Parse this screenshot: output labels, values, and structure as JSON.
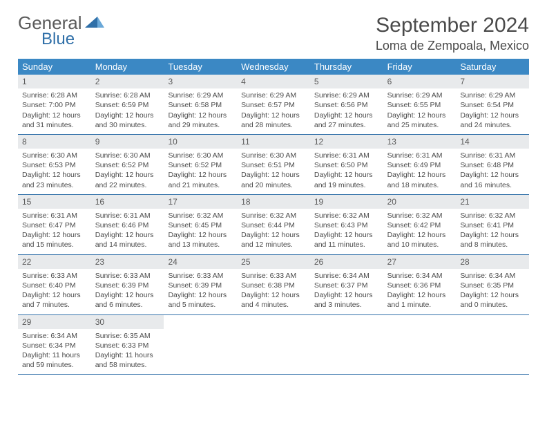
{
  "logo": {
    "word1": "General",
    "word2": "Blue"
  },
  "title": "September 2024",
  "location": "Loma de Zempoala, Mexico",
  "colors": {
    "header_bar": "#3b88c4",
    "daynum_bg": "#e8eaec",
    "rule": "#2f6fa8",
    "text": "#4a4a4a",
    "logo_gray": "#5a5a5a",
    "logo_blue": "#2f6fa8"
  },
  "weekdays": [
    "Sunday",
    "Monday",
    "Tuesday",
    "Wednesday",
    "Thursday",
    "Friday",
    "Saturday"
  ],
  "weeks": [
    [
      {
        "n": "1",
        "sr": "6:28 AM",
        "ss": "7:00 PM",
        "dl": "12 hours and 31 minutes."
      },
      {
        "n": "2",
        "sr": "6:28 AM",
        "ss": "6:59 PM",
        "dl": "12 hours and 30 minutes."
      },
      {
        "n": "3",
        "sr": "6:29 AM",
        "ss": "6:58 PM",
        "dl": "12 hours and 29 minutes."
      },
      {
        "n": "4",
        "sr": "6:29 AM",
        "ss": "6:57 PM",
        "dl": "12 hours and 28 minutes."
      },
      {
        "n": "5",
        "sr": "6:29 AM",
        "ss": "6:56 PM",
        "dl": "12 hours and 27 minutes."
      },
      {
        "n": "6",
        "sr": "6:29 AM",
        "ss": "6:55 PM",
        "dl": "12 hours and 25 minutes."
      },
      {
        "n": "7",
        "sr": "6:29 AM",
        "ss": "6:54 PM",
        "dl": "12 hours and 24 minutes."
      }
    ],
    [
      {
        "n": "8",
        "sr": "6:30 AM",
        "ss": "6:53 PM",
        "dl": "12 hours and 23 minutes."
      },
      {
        "n": "9",
        "sr": "6:30 AM",
        "ss": "6:52 PM",
        "dl": "12 hours and 22 minutes."
      },
      {
        "n": "10",
        "sr": "6:30 AM",
        "ss": "6:52 PM",
        "dl": "12 hours and 21 minutes."
      },
      {
        "n": "11",
        "sr": "6:30 AM",
        "ss": "6:51 PM",
        "dl": "12 hours and 20 minutes."
      },
      {
        "n": "12",
        "sr": "6:31 AM",
        "ss": "6:50 PM",
        "dl": "12 hours and 19 minutes."
      },
      {
        "n": "13",
        "sr": "6:31 AM",
        "ss": "6:49 PM",
        "dl": "12 hours and 18 minutes."
      },
      {
        "n": "14",
        "sr": "6:31 AM",
        "ss": "6:48 PM",
        "dl": "12 hours and 16 minutes."
      }
    ],
    [
      {
        "n": "15",
        "sr": "6:31 AM",
        "ss": "6:47 PM",
        "dl": "12 hours and 15 minutes."
      },
      {
        "n": "16",
        "sr": "6:31 AM",
        "ss": "6:46 PM",
        "dl": "12 hours and 14 minutes."
      },
      {
        "n": "17",
        "sr": "6:32 AM",
        "ss": "6:45 PM",
        "dl": "12 hours and 13 minutes."
      },
      {
        "n": "18",
        "sr": "6:32 AM",
        "ss": "6:44 PM",
        "dl": "12 hours and 12 minutes."
      },
      {
        "n": "19",
        "sr": "6:32 AM",
        "ss": "6:43 PM",
        "dl": "12 hours and 11 minutes."
      },
      {
        "n": "20",
        "sr": "6:32 AM",
        "ss": "6:42 PM",
        "dl": "12 hours and 10 minutes."
      },
      {
        "n": "21",
        "sr": "6:32 AM",
        "ss": "6:41 PM",
        "dl": "12 hours and 8 minutes."
      }
    ],
    [
      {
        "n": "22",
        "sr": "6:33 AM",
        "ss": "6:40 PM",
        "dl": "12 hours and 7 minutes."
      },
      {
        "n": "23",
        "sr": "6:33 AM",
        "ss": "6:39 PM",
        "dl": "12 hours and 6 minutes."
      },
      {
        "n": "24",
        "sr": "6:33 AM",
        "ss": "6:39 PM",
        "dl": "12 hours and 5 minutes."
      },
      {
        "n": "25",
        "sr": "6:33 AM",
        "ss": "6:38 PM",
        "dl": "12 hours and 4 minutes."
      },
      {
        "n": "26",
        "sr": "6:34 AM",
        "ss": "6:37 PM",
        "dl": "12 hours and 3 minutes."
      },
      {
        "n": "27",
        "sr": "6:34 AM",
        "ss": "6:36 PM",
        "dl": "12 hours and 1 minute."
      },
      {
        "n": "28",
        "sr": "6:34 AM",
        "ss": "6:35 PM",
        "dl": "12 hours and 0 minutes."
      }
    ],
    [
      {
        "n": "29",
        "sr": "6:34 AM",
        "ss": "6:34 PM",
        "dl": "11 hours and 59 minutes."
      },
      {
        "n": "30",
        "sr": "6:35 AM",
        "ss": "6:33 PM",
        "dl": "11 hours and 58 minutes."
      },
      null,
      null,
      null,
      null,
      null
    ]
  ],
  "labels": {
    "sunrise": "Sunrise:",
    "sunset": "Sunset:",
    "daylight": "Daylight:"
  }
}
